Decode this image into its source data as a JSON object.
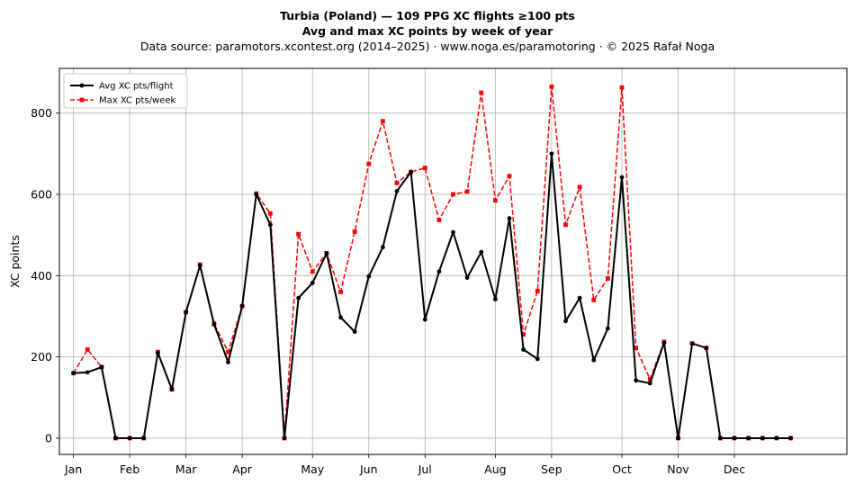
{
  "title": "Turbia (Poland)  —  109 PPG XC flights ≥100 pts",
  "subtitle": "Avg and max XC points by week of year",
  "source_line": "Data source: paramotors.xcontest.org (2014–2025)  ·  www.noga.es/paramotoring  ·  © 2025 Rafał Noga",
  "chart_data": {
    "type": "line",
    "ylabel": "XC points",
    "xlabel": "",
    "x_unit": "week of year",
    "xlim": [
      -1,
      55
    ],
    "ylim": [
      -40,
      910
    ],
    "grid": true,
    "legend_position": "top-left",
    "month_ticks": [
      {
        "label": "Jan",
        "week": 0
      },
      {
        "label": "Feb",
        "week": 4
      },
      {
        "label": "Mar",
        "week": 8
      },
      {
        "label": "Apr",
        "week": 12
      },
      {
        "label": "May",
        "week": 17
      },
      {
        "label": "Jun",
        "week": 21
      },
      {
        "label": "Jul",
        "week": 25
      },
      {
        "label": "Aug",
        "week": 30
      },
      {
        "label": "Sep",
        "week": 34
      },
      {
        "label": "Oct",
        "week": 39
      },
      {
        "label": "Nov",
        "week": 43
      },
      {
        "label": "Dec",
        "week": 47
      }
    ],
    "y_ticks": [
      0,
      200,
      400,
      600,
      800
    ],
    "weeks": [
      0,
      1,
      2,
      3,
      4,
      5,
      6,
      7,
      8,
      9,
      10,
      11,
      12,
      13,
      14,
      15,
      16,
      17,
      18,
      19,
      20,
      21,
      22,
      23,
      24,
      25,
      26,
      27,
      28,
      29,
      30,
      31,
      32,
      33,
      34,
      35,
      36,
      37,
      38,
      39,
      40,
      41,
      42,
      43,
      44,
      45,
      46,
      47,
      48,
      49,
      50,
      51
    ],
    "series": [
      {
        "name": "Avg XC pts/flight",
        "color": "#000000",
        "style": "solid",
        "marker": "circle",
        "values": [
          160,
          162,
          175,
          0,
          0,
          0,
          210,
          120,
          310,
          425,
          280,
          187,
          325,
          600,
          525,
          0,
          345,
          382,
          455,
          297,
          262,
          398,
          470,
          608,
          655,
          292,
          410,
          507,
          395,
          458,
          342,
          541,
          218,
          195,
          700,
          288,
          345,
          192,
          270,
          642,
          142,
          135,
          235,
          0,
          233,
          222,
          0,
          0,
          0,
          0,
          0,
          0
        ]
      },
      {
        "name": "Max XC pts/week",
        "color": "#ff0000",
        "style": "dashed",
        "marker": "square",
        "values": [
          160,
          218,
          175,
          0,
          0,
          0,
          212,
          120,
          310,
          427,
          282,
          212,
          325,
          602,
          553,
          0,
          502,
          410,
          455,
          360,
          508,
          675,
          780,
          628,
          655,
          665,
          537,
          600,
          607,
          850,
          585,
          645,
          255,
          362,
          865,
          525,
          618,
          340,
          393,
          863,
          222,
          145,
          237,
          0,
          233,
          222,
          0,
          0,
          0,
          0,
          0,
          0
        ]
      }
    ]
  }
}
